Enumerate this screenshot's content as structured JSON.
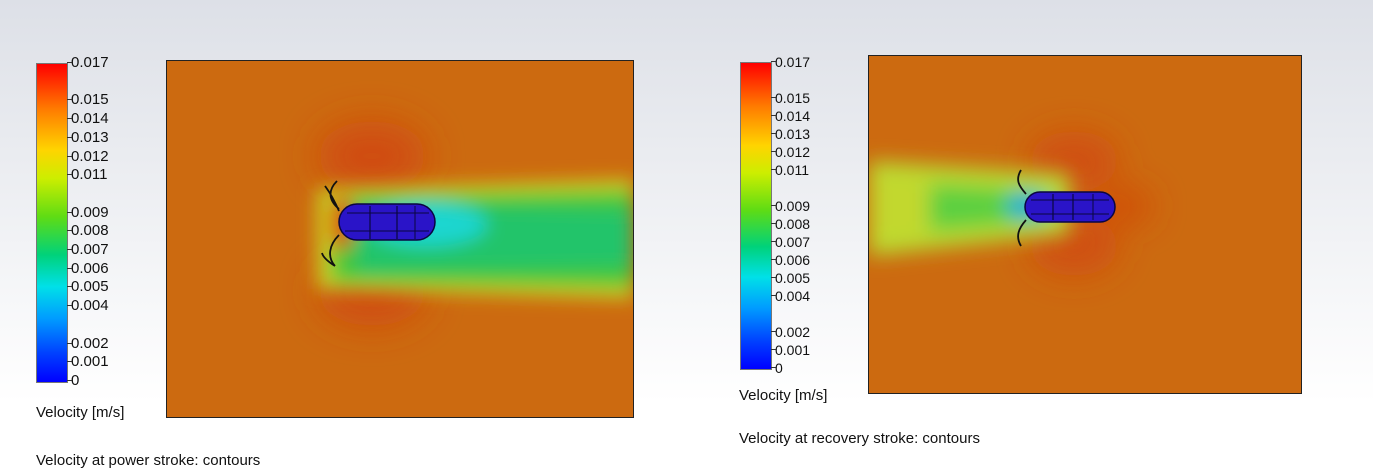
{
  "chart_data": [
    {
      "type": "heatmap",
      "colorbar": {
        "label": "Velocity [m/s]",
        "range": [
          0,
          0.017
        ],
        "ticks": [
          "0.017",
          "0.015",
          "0.014",
          "0.013",
          "0.012",
          "0.011",
          "0.009",
          "0.008",
          "0.007",
          "0.006",
          "0.005",
          "0.004",
          "0.002",
          "0.001",
          "0"
        ],
        "colors": [
          "#0000ff",
          "#009cff",
          "#00e0e8",
          "#00d27a",
          "#5fdc14",
          "#ccee00",
          "#ffd400",
          "#ff7a00",
          "#ff0000"
        ]
      },
      "caption": "Velocity at power stroke: contours",
      "wake_direction": "right"
    },
    {
      "type": "heatmap",
      "colorbar": {
        "label": "Velocity [m/s]",
        "range": [
          0,
          0.017
        ],
        "ticks": [
          "0.017",
          "0.015",
          "0.014",
          "0.013",
          "0.012",
          "0.011",
          "0.009",
          "0.008",
          "0.007",
          "0.006",
          "0.005",
          "0.004",
          "0.002",
          "0.001",
          "0"
        ],
        "colors": [
          "#0000ff",
          "#009cff",
          "#00e0e8",
          "#00d27a",
          "#5fdc14",
          "#ccee00",
          "#ffd400",
          "#ff7a00",
          "#ff0000"
        ]
      },
      "caption": "Velocity at recovery stroke: contours",
      "wake_direction": "left"
    }
  ]
}
